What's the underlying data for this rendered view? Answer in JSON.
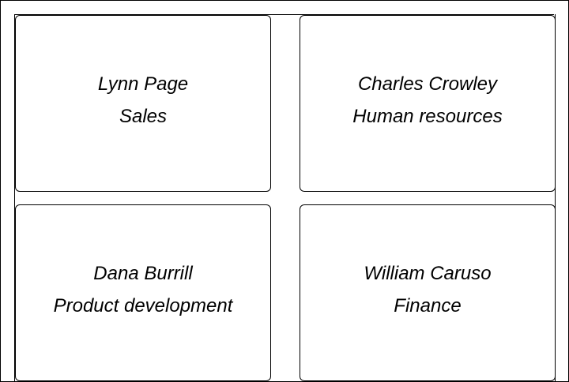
{
  "cards": [
    {
      "name": "Lynn Page",
      "department": "Sales"
    },
    {
      "name": "Charles Crowley",
      "department": "Human resources"
    },
    {
      "name": "Dana Burrill",
      "department": "Product development"
    },
    {
      "name": "William Caruso",
      "department": "Finance"
    }
  ]
}
